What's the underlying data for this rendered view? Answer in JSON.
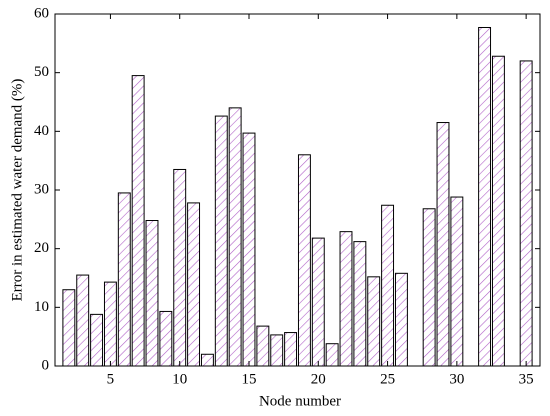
{
  "chart_data": {
    "type": "bar",
    "x_label": "Node number",
    "y_label": "Error in estimated water demand (%)",
    "x": [
      2,
      3,
      4,
      5,
      6,
      7,
      8,
      9,
      10,
      11,
      12,
      13,
      14,
      15,
      16,
      17,
      18,
      19,
      20,
      21,
      22,
      23,
      24,
      25,
      26,
      28,
      29,
      30,
      32,
      33,
      35
    ],
    "values": [
      13,
      15.5,
      8.8,
      14.3,
      29.5,
      49.5,
      24.8,
      9.3,
      33.5,
      27.8,
      2,
      42.6,
      44,
      39.7,
      6.8,
      5.3,
      5.7,
      36,
      21.8,
      3.8,
      22.9,
      21.2,
      15.2,
      27.4,
      15.8,
      26.8,
      41.5,
      28.8,
      57.7,
      52.8,
      52
    ],
    "color": "#b061c8",
    "xlim": [
      1,
      36
    ],
    "xticks": [
      5,
      10,
      15,
      20,
      25,
      30,
      35
    ],
    "ylim": [
      0,
      60
    ],
    "yticks": [
      0,
      10,
      20,
      30,
      40,
      50,
      60
    ]
  }
}
